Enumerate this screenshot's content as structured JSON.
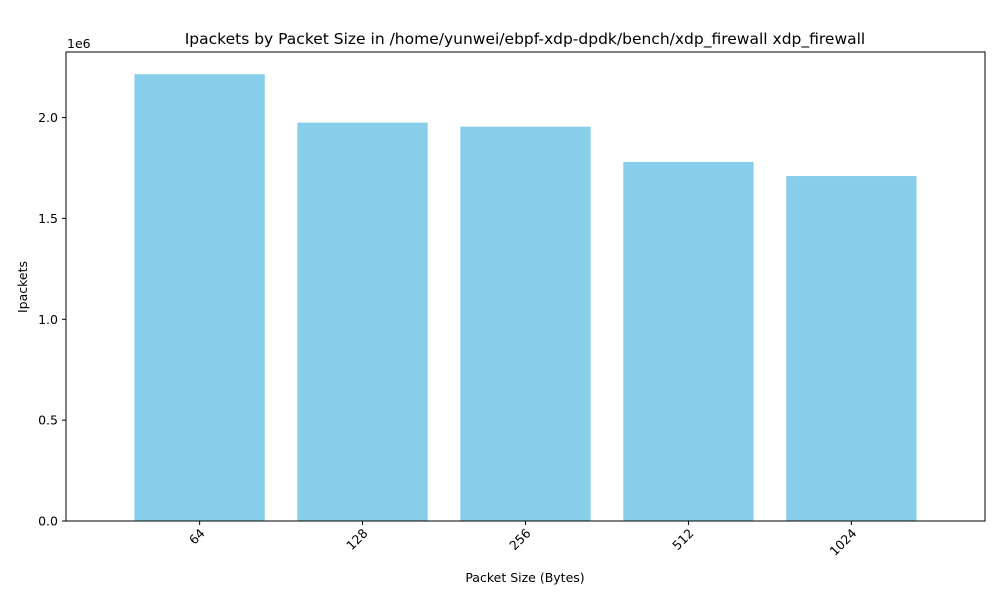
{
  "chart_data": {
    "type": "bar",
    "title": "Ipackets by Packet Size in /home/yunwei/ebpf-xdp-dpdk/bench/xdp_firewall xdp_firewall",
    "xlabel": "Packet Size (Bytes)",
    "ylabel": "Ipackets",
    "categories": [
      "64",
      "128",
      "256",
      "512",
      "1024"
    ],
    "values": [
      2215000,
      1975000,
      1955000,
      1780000,
      1710000
    ],
    "ylim": [
      0,
      2325000
    ],
    "yticks": [
      0.0,
      0.5,
      1.0,
      1.5,
      2.0
    ],
    "ytick_labels": [
      "0.0",
      "0.5",
      "1.0",
      "1.5",
      "2.0"
    ],
    "y_offset_label": "1e6",
    "y_scale": 1000000,
    "bar_color": "#87ceeb",
    "grid": false
  }
}
